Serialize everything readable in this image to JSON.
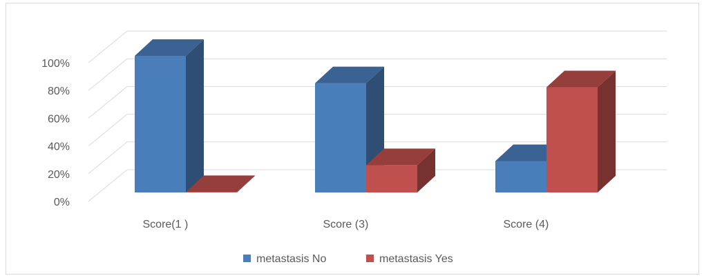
{
  "chart_data": {
    "type": "bar",
    "categories": [
      "Score(1 )",
      "Score (3)",
      "Score (4)"
    ],
    "series": [
      {
        "name": "metastasis No",
        "values": [
          100,
          80,
          23
        ],
        "color": "#4a7ebb"
      },
      {
        "name": "metastasis Yes",
        "values": [
          0,
          20,
          77
        ],
        "color": "#c0504d"
      }
    ],
    "y_ticks": [
      "0%",
      "20%",
      "40%",
      "60%",
      "80%",
      "100%"
    ],
    "ylim": [
      0,
      100
    ],
    "grid": true,
    "legend_position": "bottom",
    "style": "3d-column"
  }
}
